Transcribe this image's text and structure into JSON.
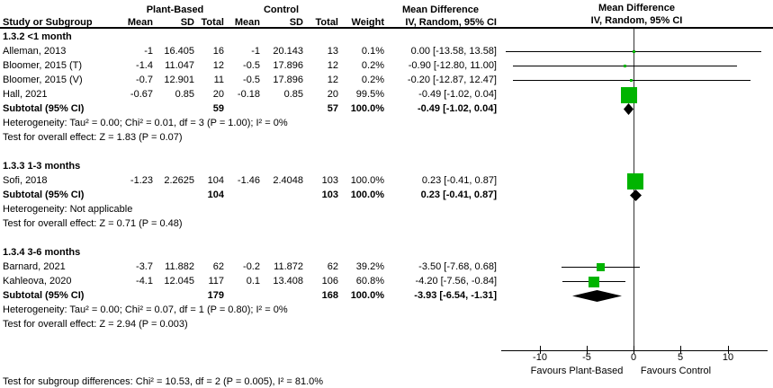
{
  "header": {
    "group1": "Plant-Based",
    "group2": "Control",
    "md_text_col_title": "Mean Difference",
    "md_text_col_sub": "IV, Random, 95% CI",
    "md_plot_col_title": "Mean Difference",
    "md_plot_col_sub": "IV, Random, 95% CI",
    "columns": [
      "Study or Subgroup",
      "Mean",
      "SD",
      "Total",
      "Mean",
      "SD",
      "Total",
      "Weight",
      "IV, Random, 95% CI"
    ]
  },
  "sections": [
    {
      "title": "1.3.2 <1 month",
      "studies": [
        {
          "name": "Alleman, 2013",
          "cells": [
            "-1",
            "16.405",
            "16",
            "-1",
            "20.143",
            "13",
            "0.1%",
            "0.00 [-13.58, 13.58]"
          ]
        },
        {
          "name": "Bloomer, 2015 (T)",
          "cells": [
            "-1.4",
            "11.047",
            "12",
            "-0.5",
            "17.896",
            "12",
            "0.2%",
            "-0.90 [-12.80, 11.00]"
          ]
        },
        {
          "name": "Bloomer, 2015 (V)",
          "cells": [
            "-0.7",
            "12.901",
            "11",
            "-0.5",
            "17.896",
            "12",
            "0.2%",
            "-0.20 [-12.87, 12.47]"
          ]
        },
        {
          "name": "Hall, 2021",
          "cells": [
            "-0.67",
            "0.85",
            "20",
            "-0.18",
            "0.85",
            "20",
            "99.5%",
            "-0.49 [-1.02, 0.04]"
          ]
        }
      ],
      "subtotal": {
        "name": "Subtotal (95% CI)",
        "cells": [
          "",
          "",
          "59",
          "",
          "",
          "57",
          "100.0%",
          "-0.49 [-1.02, 0.04]"
        ]
      },
      "heterogeneity": "Heterogeneity: Tau² = 0.00; Chi² = 0.01, df = 3 (P = 1.00); I² = 0%",
      "overall_test": "Test for overall effect: Z = 1.83 (P = 0.07)"
    },
    {
      "title": "1.3.3 1-3 months",
      "studies": [
        {
          "name": "Sofi, 2018",
          "cells": [
            "-1.23",
            "2.2625",
            "104",
            "-1.46",
            "2.4048",
            "103",
            "100.0%",
            "0.23 [-0.41, 0.87]"
          ]
        }
      ],
      "subtotal": {
        "name": "Subtotal (95% CI)",
        "cells": [
          "",
          "",
          "104",
          "",
          "",
          "103",
          "100.0%",
          "0.23 [-0.41, 0.87]"
        ]
      },
      "heterogeneity": "Heterogeneity: Not applicable",
      "overall_test": "Test for overall effect: Z = 0.71 (P = 0.48)"
    },
    {
      "title": "1.3.4 3-6 months",
      "studies": [
        {
          "name": "Barnard, 2021",
          "cells": [
            "-3.7",
            "11.882",
            "62",
            "-0.2",
            "11.872",
            "62",
            "39.2%",
            "-3.50 [-7.68, 0.68]"
          ]
        },
        {
          "name": "Kahleova, 2020",
          "cells": [
            "-4.1",
            "12.045",
            "117",
            "0.1",
            "13.408",
            "106",
            "60.8%",
            "-4.20 [-7.56, -0.84]"
          ]
        }
      ],
      "subtotal": {
        "name": "Subtotal (95% CI)",
        "cells": [
          "",
          "",
          "179",
          "",
          "",
          "168",
          "100.0%",
          "-3.93 [-6.54, -1.31]"
        ]
      },
      "heterogeneity": "Heterogeneity: Tau² = 0.00; Chi² = 0.07, df = 1 (P = 0.80); I² = 0%",
      "overall_test": "Test for overall effect: Z = 2.94 (P = 0.003)"
    }
  ],
  "footer": {
    "subgroup_test": "Test for subgroup differences: Chi² = 10.53, df = 2 (P = 0.005), I² = 81.0%"
  },
  "axis": {
    "ticks": [
      -10,
      -5,
      0,
      5,
      10
    ],
    "favours_left": "Favours Plant-Based",
    "favours_right": "Favours Control"
  },
  "colors": {
    "marker_green": "#00b400",
    "diamond_black": "#000000"
  },
  "chart_data": {
    "type": "forest",
    "effect_measure": "Mean Difference",
    "model": "IV, Random, 95% CI",
    "x_ticks": [
      -10,
      -5,
      0,
      5,
      10
    ],
    "xlim": [
      -14.2,
      14.8
    ],
    "xlabel_left": "Favours Plant-Based",
    "xlabel_right": "Favours Control",
    "subgroups": [
      {
        "name": "1.3.2 <1 month",
        "studies": [
          {
            "label": "Alleman, 2013",
            "md": 0.0,
            "ci": [
              -13.58,
              13.58
            ],
            "weight_pct": 0.1
          },
          {
            "label": "Bloomer, 2015 (T)",
            "md": -0.9,
            "ci": [
              -12.8,
              11.0
            ],
            "weight_pct": 0.2
          },
          {
            "label": "Bloomer, 2015 (V)",
            "md": -0.2,
            "ci": [
              -12.87,
              12.47
            ],
            "weight_pct": 0.2
          },
          {
            "label": "Hall, 2021",
            "md": -0.49,
            "ci": [
              -1.02,
              0.04
            ],
            "weight_pct": 99.5
          }
        ],
        "subtotal": {
          "md": -0.49,
          "ci": [
            -1.02,
            0.04
          ]
        }
      },
      {
        "name": "1.3.3 1-3 months",
        "studies": [
          {
            "label": "Sofi, 2018",
            "md": 0.23,
            "ci": [
              -0.41,
              0.87
            ],
            "weight_pct": 100.0
          }
        ],
        "subtotal": {
          "md": 0.23,
          "ci": [
            -0.41,
            0.87
          ]
        }
      },
      {
        "name": "1.3.4 3-6 months",
        "studies": [
          {
            "label": "Barnard, 2021",
            "md": -3.5,
            "ci": [
              -7.68,
              0.68
            ],
            "weight_pct": 39.2
          },
          {
            "label": "Kahleova, 2020",
            "md": -4.2,
            "ci": [
              -7.56,
              -0.84
            ],
            "weight_pct": 60.8
          }
        ],
        "subtotal": {
          "md": -3.93,
          "ci": [
            -6.54,
            -1.31
          ]
        }
      }
    ]
  }
}
